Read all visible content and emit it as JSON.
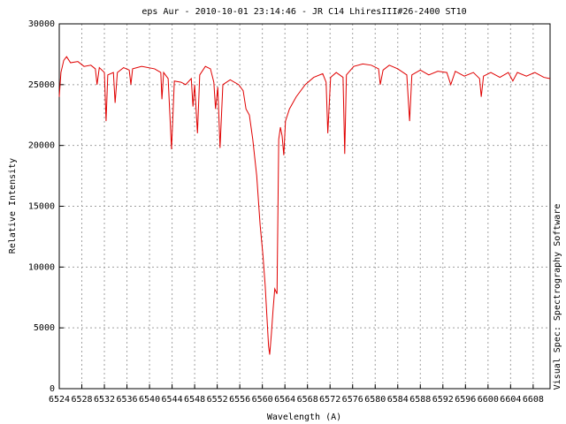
{
  "chart_data": {
    "type": "line",
    "title": "eps Aur - 2010-10-01 23:14:46 - JR C14 LhiresIII#26-2400 ST10",
    "x_label": "Wavelength (A)",
    "y_label": "Relative Intensity",
    "side_note": "Visual Spec: Spectrography Software",
    "xlim": [
      6524,
      6611
    ],
    "ylim": [
      0,
      30000
    ],
    "xticks": [
      6524,
      6528,
      6532,
      6536,
      6540,
      6544,
      6548,
      6552,
      6556,
      6560,
      6564,
      6568,
      6572,
      6576,
      6580,
      6584,
      6588,
      6592,
      6596,
      6600,
      6604,
      6608
    ],
    "yticks": [
      0,
      5000,
      10000,
      15000,
      20000,
      25000,
      30000
    ],
    "grid": true,
    "x": [
      6524.0,
      6524.3,
      6524.8,
      6525.3,
      6526.0,
      6527.3,
      6528.4,
      6529.6,
      6530.4,
      6530.7,
      6531.1,
      6532.0,
      6532.3,
      6532.6,
      6533.6,
      6533.9,
      6534.3,
      6535.4,
      6536.4,
      6536.7,
      6537.0,
      6538.6,
      6540.9,
      6542.0,
      6542.2,
      6542.5,
      6543.3,
      6543.9,
      6544.4,
      6545.6,
      6546.4,
      6547.4,
      6547.7,
      6548.0,
      6548.5,
      6548.9,
      6549.9,
      6550.8,
      6551.4,
      6551.7,
      6552.1,
      6552.5,
      6553.0,
      6554.3,
      6555.8,
      6556.6,
      6557.1,
      6557.7,
      6558.3,
      6559.0,
      6559.6,
      6560.1,
      6560.5,
      6560.8,
      6561.1,
      6561.3,
      6561.6,
      6561.9,
      6562.2,
      6562.6,
      6562.9,
      6563.2,
      6563.5,
      6563.8,
      6564.1,
      6564.8,
      6566.0,
      6567.6,
      6569.1,
      6570.7,
      6571.3,
      6571.6,
      6572.1,
      6573.1,
      6574.3,
      6574.6,
      6574.9,
      6576.2,
      6577.8,
      6579.3,
      6580.6,
      6580.9,
      6581.4,
      6582.5,
      6584.0,
      6585.6,
      6586.1,
      6586.5,
      6588.0,
      6589.5,
      6591.1,
      6592.7,
      6593.4,
      6594.2,
      6595.8,
      6597.4,
      6598.5,
      6598.8,
      6599.2,
      6600.5,
      6602.1,
      6603.6,
      6604.4,
      6605.2,
      6606.8,
      6608.3,
      6609.9,
      6611.0
    ],
    "series": [
      {
        "name": "eps Aur",
        "color": "#e00000",
        "values": [
          24000,
          26000,
          27000,
          27300,
          26800,
          26900,
          26500,
          26600,
          26300,
          25000,
          26400,
          26000,
          22000,
          25800,
          26000,
          23500,
          26000,
          26400,
          26200,
          25000,
          26300,
          26500,
          26300,
          26000,
          23800,
          26000,
          25500,
          19700,
          25300,
          25200,
          25000,
          25500,
          23200,
          25000,
          21000,
          25800,
          26500,
          26300,
          25200,
          23000,
          24800,
          19800,
          25000,
          25400,
          25000,
          24500,
          23000,
          22500,
          20500,
          17500,
          13500,
          11000,
          8500,
          6000,
          3500,
          2800,
          4500,
          6500,
          8200,
          7800,
          20500,
          21500,
          20800,
          19200,
          22000,
          23000,
          24000,
          25000,
          25600,
          25900,
          25200,
          21000,
          25600,
          26000,
          25600,
          19300,
          25800,
          26500,
          26700,
          26600,
          26300,
          25000,
          26200,
          26600,
          26300,
          25800,
          22000,
          25800,
          26200,
          25800,
          26100,
          26000,
          25000,
          26100,
          25700,
          26000,
          25500,
          24000,
          25700,
          26000,
          25600,
          26000,
          25300,
          26000,
          25700,
          26000,
          25600,
          25500
        ]
      }
    ]
  }
}
